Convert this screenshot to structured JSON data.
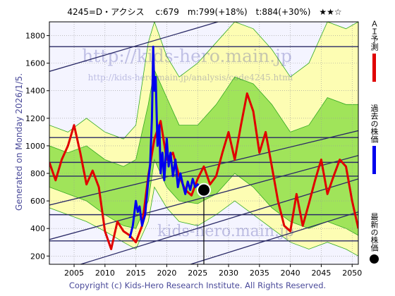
{
  "header": {
    "title": "4245=D・アクシス　 c:679　m:799(+18%)　t:884(+30%)　★★☆"
  },
  "side_note": "Generated on Monday 2026/1/5.",
  "footer": "Copyright (c) Kids-Hero Research Institute. All Rights Reserved.",
  "watermarks": {
    "main": "http://kids-hero.main.jp",
    "sub": "http://kids-hero.main.jp/analysis/code4245.html",
    "bottom": "kids-hero.main.jp"
  },
  "legend": [
    {
      "label": "ＡＩ予測",
      "color": "#e00000",
      "kind": "bar"
    },
    {
      "label": "過去の株価",
      "color": "#0000ee",
      "kind": "bar"
    },
    {
      "label": "最新の株価",
      "color": "#000000",
      "kind": "dot"
    }
  ],
  "colors": {
    "plot_bg": "#f4f4ff",
    "band_light": "#ffffa0",
    "band_green": "#88dd44",
    "band_line": "#33aa22",
    "trend": "#2a2a66",
    "level": "#2a2a66",
    "ai": "#e00000",
    "past": "#0000ee",
    "latest": "#000000"
  },
  "chart_data": {
    "type": "line",
    "xlim": [
      2001,
      2051
    ],
    "ylim": [
      140,
      1900
    ],
    "x_ticks": [
      2005,
      2010,
      2015,
      2020,
      2025,
      2030,
      2035,
      2040,
      2045,
      2050
    ],
    "y_ticks": [
      200,
      400,
      600,
      800,
      1000,
      1200,
      1400,
      1600,
      1800
    ],
    "grid": true,
    "levels": [
      1720,
      1060,
      880,
      780,
      500,
      310
    ],
    "trend_lines": [
      {
        "x": [
          2001,
          2051
        ],
        "y": [
          1540,
          2200
        ]
      },
      {
        "x": [
          2001,
          2051
        ],
        "y": [
          570,
          1110
        ]
      },
      {
        "x": [
          2001,
          2051
        ],
        "y": [
          320,
          930
        ]
      },
      {
        "x": [
          2001,
          2051
        ],
        "y": [
          70,
          760
        ]
      },
      {
        "x": [
          2001,
          2051
        ],
        "y": [
          -180,
          520
        ]
      }
    ],
    "band_outer": {
      "x": [
        2001,
        2004,
        2007,
        2010,
        2013,
        2015,
        2017,
        2018,
        2020,
        2022,
        2025,
        2028,
        2031,
        2034,
        2037,
        2040,
        2043,
        2046,
        2049,
        2051
      ],
      "upper": [
        1150,
        1100,
        1200,
        1100,
        1050,
        1150,
        1750,
        1900,
        1650,
        1500,
        1600,
        1750,
        1900,
        1850,
        1700,
        1500,
        1600,
        1900,
        1850,
        1900
      ],
      "lower": [
        550,
        500,
        450,
        380,
        300,
        250,
        450,
        700,
        550,
        450,
        420,
        500,
        600,
        500,
        400,
        300,
        250,
        300,
        250,
        200
      ]
    },
    "band_inner": {
      "x": [
        2001,
        2004,
        2007,
        2010,
        2013,
        2015,
        2017,
        2018,
        2020,
        2022,
        2025,
        2028,
        2031,
        2034,
        2037,
        2040,
        2043,
        2046,
        2049,
        2051
      ],
      "upper": [
        1000,
        950,
        1000,
        900,
        850,
        900,
        1300,
        1550,
        1350,
        1150,
        1150,
        1300,
        1500,
        1450,
        1300,
        1100,
        1150,
        1350,
        1300,
        1300
      ],
      "lower": [
        700,
        650,
        600,
        500,
        420,
        400,
        600,
        900,
        700,
        600,
        580,
        650,
        800,
        700,
        550,
        450,
        400,
        450,
        400,
        350
      ]
    },
    "series": [
      {
        "name": "ＡＩ予測",
        "x": [
          2001,
          2002,
          2003,
          2004,
          2005,
          2006,
          2007,
          2008,
          2009,
          2010,
          2011,
          2012,
          2013,
          2014,
          2015,
          2016,
          2017,
          2018,
          2019,
          2020,
          2021,
          2022,
          2023,
          2024,
          2025,
          2026,
          2027,
          2028,
          2029,
          2030,
          2031,
          2032,
          2033,
          2034,
          2035,
          2036,
          2037,
          2038,
          2039,
          2040,
          2041,
          2042,
          2043,
          2044,
          2045,
          2046,
          2047,
          2048,
          2049,
          2050,
          2051
        ],
        "y": [
          880,
          750,
          900,
          1000,
          1150,
          950,
          720,
          820,
          700,
          380,
          250,
          450,
          380,
          350,
          300,
          420,
          780,
          1050,
          1180,
          900,
          950,
          780,
          680,
          640,
          760,
          850,
          720,
          780,
          950,
          1100,
          900,
          1150,
          1380,
          1250,
          950,
          1100,
          850,
          600,
          420,
          380,
          650,
          420,
          580,
          750,
          900,
          650,
          780,
          900,
          850,
          600,
          400
        ]
      },
      {
        "name": "過去の株価",
        "x": [
          2014.0,
          2014.5,
          2015.0,
          2015.3,
          2015.6,
          2016.0,
          2016.5,
          2017.0,
          2017.3,
          2017.6,
          2017.8,
          2018.0,
          2018.2,
          2018.5,
          2018.8,
          2019.0,
          2019.3,
          2019.6,
          2020.0,
          2020.3,
          2020.6,
          2021.0,
          2021.4,
          2021.8,
          2022.2,
          2022.6,
          2023.0,
          2023.4,
          2023.8,
          2024.2,
          2024.6,
          2025.0,
          2025.5,
          2026.0
        ],
        "y": [
          330,
          420,
          600,
          520,
          560,
          420,
          500,
          750,
          860,
          1200,
          1720,
          1400,
          1500,
          1000,
          1150,
          800,
          950,
          750,
          1050,
          850,
          950,
          780,
          900,
          700,
          800,
          720,
          650,
          740,
          680,
          760,
          700,
          720,
          700,
          679
        ]
      }
    ],
    "latest": {
      "x": 2026.0,
      "y": 679
    }
  }
}
